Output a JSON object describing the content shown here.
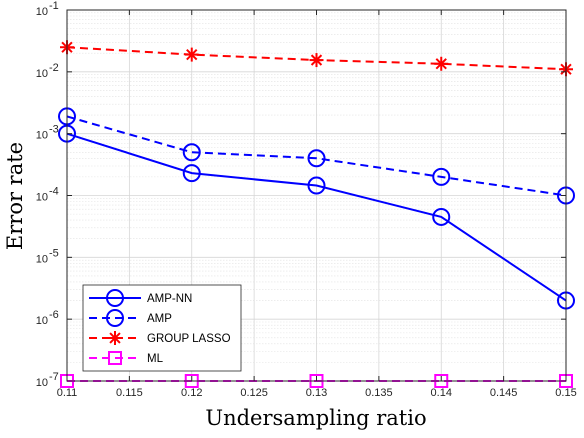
{
  "chart_data": {
    "type": "line",
    "xlabel": "Undersampling ratio",
    "ylabel": "Error rate",
    "x": [
      0.11,
      0.12,
      0.13,
      0.14,
      0.15
    ],
    "xlim": [
      0.11,
      0.15
    ],
    "xticks": [
      0.11,
      0.115,
      0.12,
      0.125,
      0.13,
      0.135,
      0.14,
      0.145,
      0.15
    ],
    "xtick_labels": [
      "0.11",
      "0.115",
      "0.12",
      "0.125",
      "0.13",
      "0.135",
      "0.14",
      "0.145",
      "0.15"
    ],
    "yscale": "log",
    "ylim": [
      1e-07,
      0.1
    ],
    "ytick_exponents": [
      -7,
      -6,
      -5,
      -4,
      -3,
      -2,
      -1
    ],
    "grid": true,
    "legend_position": "bottom-left",
    "series": [
      {
        "name": "AMP-NN",
        "values": [
          0.001,
          0.00023,
          0.000145,
          4.5e-05,
          2e-06
        ],
        "color": "#0000ff",
        "line": "solid",
        "marker": "circle"
      },
      {
        "name": "AMP",
        "values": [
          0.0019,
          0.0005,
          0.0004,
          0.0002,
          0.0001
        ],
        "color": "#0000ff",
        "line": "dashed",
        "marker": "circle"
      },
      {
        "name": "GROUP LASSO",
        "values": [
          0.025,
          0.019,
          0.0155,
          0.0135,
          0.011
        ],
        "color": "#ff0000",
        "line": "dashed",
        "marker": "asterisk"
      },
      {
        "name": "ML",
        "values": [
          1e-07,
          1e-07,
          1e-07,
          1e-07,
          1e-07
        ],
        "color": "#ff00ff",
        "line": "dashed",
        "marker": "square"
      }
    ]
  }
}
